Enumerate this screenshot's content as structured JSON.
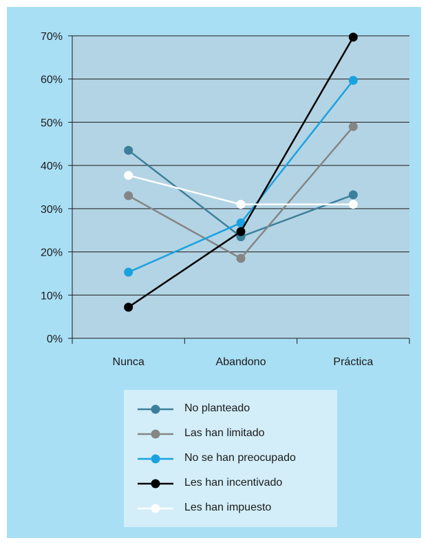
{
  "chart_data": {
    "type": "line",
    "categories": [
      "Nunca",
      "Abandono",
      "Práctica"
    ],
    "yticks": [
      "0%",
      "10%",
      "20%",
      "30%",
      "40%",
      "50%",
      "60%",
      "70%"
    ],
    "ylim": [
      0,
      70
    ],
    "grid": true,
    "legend_position": "bottom",
    "plot_background": "#b3d4e4",
    "series": [
      {
        "name": "No planteado",
        "values": [
          43.5,
          23.5,
          33.2
        ],
        "color": "#3c7f9a"
      },
      {
        "name": "Las han limitado",
        "values": [
          33.0,
          18.5,
          49.0
        ],
        "color": "#858585"
      },
      {
        "name": "No se han preocupado",
        "values": [
          15.3,
          26.7,
          59.7
        ],
        "color": "#1aa2e0"
      },
      {
        "name": "Les han incentivado",
        "values": [
          7.2,
          24.7,
          69.7
        ],
        "color": "#000000"
      },
      {
        "name": "Les han impuesto",
        "values": [
          37.7,
          31.0,
          31.0
        ],
        "color": "#ffffff"
      }
    ]
  }
}
